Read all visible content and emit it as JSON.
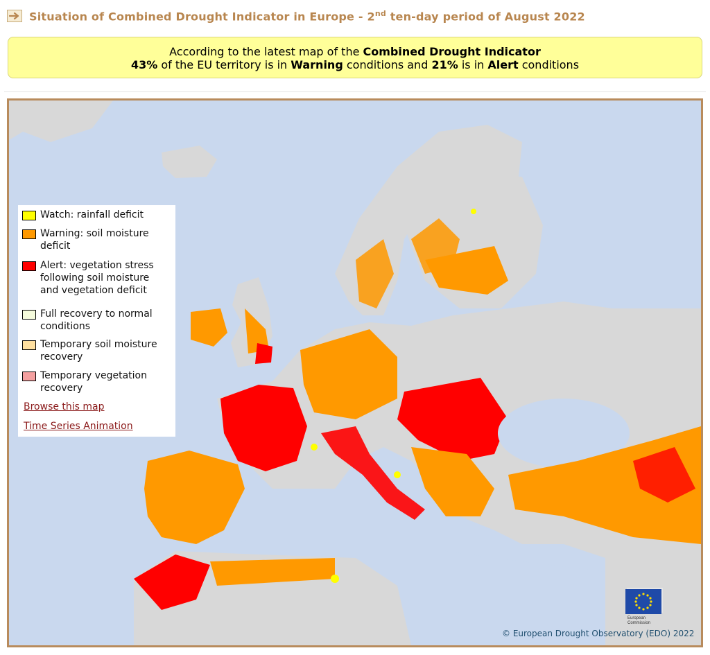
{
  "header": {
    "title_pre": "Situation of Combined Drought Indicator in Europe - 2",
    "title_sup": "nd",
    "title_post": " ten-day period of August 2022"
  },
  "notice": {
    "line1_pre": "According to the latest map of the ",
    "line1_bold": "Combined Drought Indicator",
    "pct_warning": "43%",
    "mid1": " of the EU territory is in ",
    "warning_word": "Warning",
    "mid2": " conditions and ",
    "pct_alert": "21%",
    "mid3": " is in ",
    "alert_word": "Alert",
    "tail": " conditions"
  },
  "legend": {
    "items": [
      {
        "label": "Watch: rainfall deficit",
        "color": "#ffff00"
      },
      {
        "label": "Warning: soil moisture deficit",
        "color": "#ff9900"
      },
      {
        "label": "Alert: vegetation stress following soil moisture and vegetation deficit",
        "color": "#ff0000"
      },
      {
        "label": "Full recovery to normal conditions",
        "color": "#f5fbdc"
      },
      {
        "label": "Temporary soil moisture recovery",
        "color": "#ffe0a0"
      },
      {
        "label": "Temporary vegetation recovery",
        "color": "#f4a0a0"
      }
    ],
    "link_browse": "Browse this map",
    "link_animation": "Time Series Animation"
  },
  "logo": {
    "line1": "European",
    "line2": "Commission"
  },
  "copyright": "© European Drought Observatory (EDO) 2022",
  "colors": {
    "sea": "#c9d8ee",
    "land_no_data": "#d8d8d8",
    "warning": "#ff9900",
    "alert": "#ff0000",
    "watch": "#ffff00",
    "frame": "#b88b5c"
  }
}
